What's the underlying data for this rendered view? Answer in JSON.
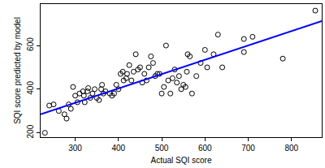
{
  "chart_data": {
    "type": "scatter",
    "x_label": "Actual SQI score",
    "y_label": "SQI score predicted by model",
    "xlim": [
      220,
      870
    ],
    "ylim": [
      180,
      790
    ],
    "xticks": [
      300,
      400,
      500,
      600,
      700,
      800
    ],
    "yticks": [
      200,
      400,
      600
    ],
    "grid": false,
    "series": [
      {
        "type": "scatter",
        "marker": "open_circle",
        "color": "#000000",
        "x": [
          230,
          240,
          250,
          262,
          275,
          280,
          285,
          290,
          295,
          300,
          305,
          310,
          318,
          320,
          322,
          328,
          330,
          335,
          340,
          345,
          350,
          355,
          360,
          362,
          365,
          370,
          380,
          385,
          390,
          395,
          400,
          405,
          410,
          412,
          418,
          420,
          425,
          430,
          435,
          440,
          445,
          450,
          455,
          460,
          465,
          470,
          475,
          480,
          485,
          490,
          495,
          500,
          505,
          510,
          515,
          520,
          525,
          530,
          535,
          540,
          545,
          550,
          555,
          558,
          560,
          565,
          570,
          580,
          590,
          600,
          605,
          620,
          630,
          640,
          690,
          690,
          710,
          780,
          855
        ],
        "values": [
          200,
          325,
          330,
          300,
          285,
          265,
          330,
          310,
          410,
          370,
          340,
          380,
          390,
          370,
          340,
          390,
          405,
          360,
          380,
          400,
          360,
          350,
          400,
          420,
          380,
          390,
          380,
          370,
          380,
          420,
          400,
          470,
          480,
          440,
          450,
          470,
          510,
          440,
          480,
          560,
          490,
          500,
          430,
          470,
          440,
          500,
          550,
          520,
          460,
          470,
          470,
          380,
          410,
          600,
          440,
          380,
          450,
          490,
          430,
          460,
          400,
          420,
          410,
          480,
          560,
          550,
          380,
          460,
          520,
          580,
          500,
          560,
          650,
          500,
          570,
          630,
          640,
          540,
          760
        ]
      },
      {
        "type": "line",
        "line_style": "solid",
        "color": "#0000ff",
        "x": [
          220,
          870
        ],
        "values": [
          285,
          712
        ]
      }
    ]
  }
}
